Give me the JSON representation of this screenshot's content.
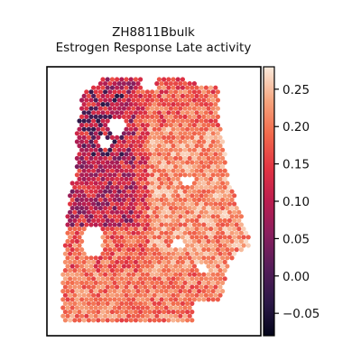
{
  "chart_data": {
    "type": "heatmap",
    "subtype": "spatial-hexbin",
    "title_line1": "ZH8811Bbulk",
    "title_line2": "Estrogen Response Late activity",
    "colormap": "rocket",
    "vmin": -0.08,
    "vmax": 0.28,
    "colorbar_ticks": [
      {
        "value": -0.05,
        "label": "−0.05"
      },
      {
        "value": 0.0,
        "label": "0.00"
      },
      {
        "value": 0.05,
        "label": "0.05"
      },
      {
        "value": 0.1,
        "label": "0.10"
      },
      {
        "value": 0.15,
        "label": "0.15"
      },
      {
        "value": 0.2,
        "label": "0.20"
      },
      {
        "value": 0.25,
        "label": "0.25"
      }
    ],
    "xticks": [],
    "yticks": []
  }
}
